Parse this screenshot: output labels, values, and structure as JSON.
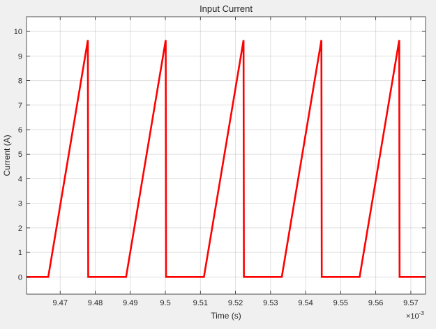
{
  "chart_data": {
    "type": "line",
    "title": "Input Current",
    "xlabel": "Time (s)",
    "ylabel": "Current (A)",
    "x_exponent_label": "×10",
    "x_exponent_power": "-3",
    "xlim": [
      9.4604,
      9.5742
    ],
    "ylim": [
      -0.7,
      10.6
    ],
    "xticks": [
      9.47,
      9.48,
      9.49,
      9.5,
      9.51,
      9.52,
      9.53,
      9.54,
      9.55,
      9.56,
      9.57
    ],
    "xtick_labels": [
      "9.47",
      "9.48",
      "9.49",
      "9.5",
      "9.51",
      "9.52",
      "9.53",
      "9.54",
      "9.55",
      "9.56",
      "9.57"
    ],
    "yticks": [
      0,
      1,
      2,
      3,
      4,
      5,
      6,
      7,
      8,
      9,
      10
    ],
    "ytick_labels": [
      "0",
      "1",
      "2",
      "3",
      "4",
      "5",
      "6",
      "7",
      "8",
      "9",
      "10"
    ],
    "grid": true,
    "line_color": "#ff0000",
    "series": [
      {
        "x": [
          9.4604,
          9.4666,
          9.4779,
          9.478,
          9.4888,
          9.5001,
          9.5002,
          9.511,
          9.5223,
          9.5224,
          9.5332,
          9.5445,
          9.5446,
          9.5554,
          9.5667,
          9.5668,
          9.5742
        ],
        "y": [
          0,
          0,
          9.65,
          0,
          0,
          9.65,
          0,
          0,
          9.65,
          0,
          0,
          9.65,
          0,
          0,
          9.65,
          0,
          0
        ]
      }
    ]
  }
}
